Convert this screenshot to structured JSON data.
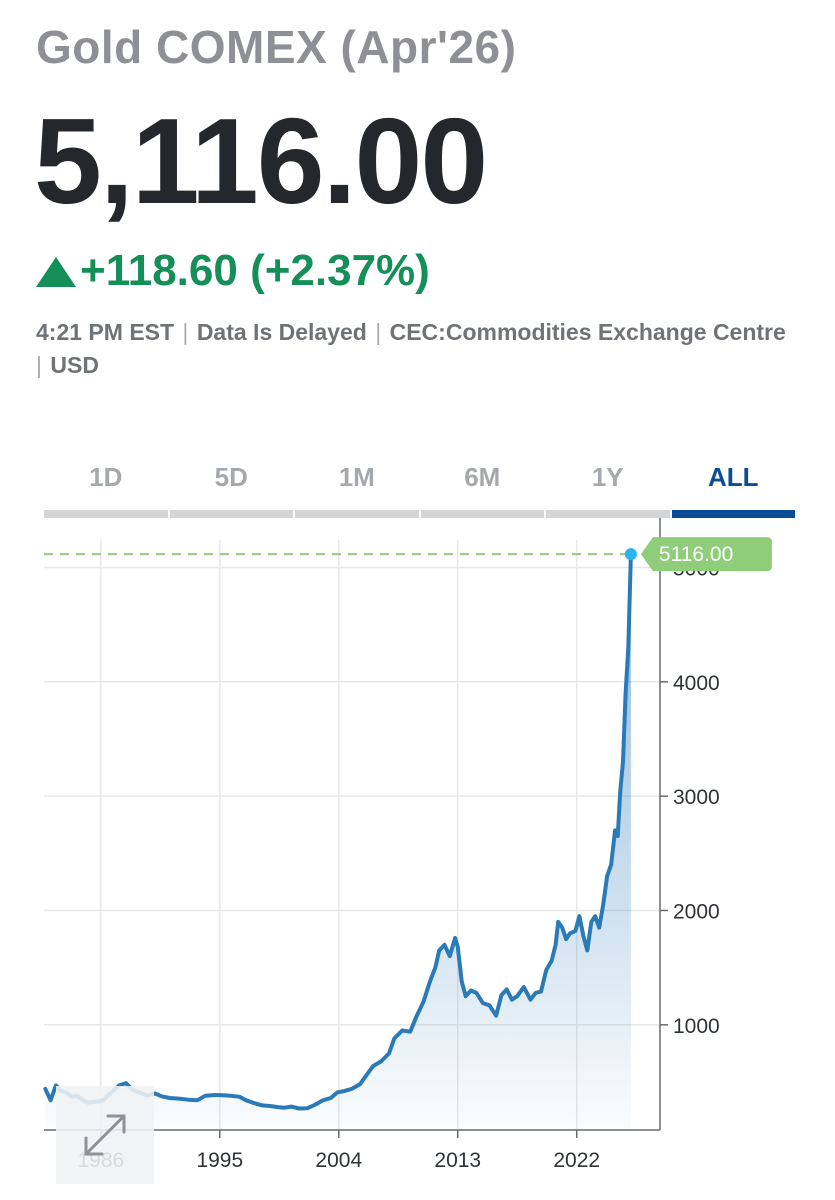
{
  "header": {
    "title": "Gold COMEX (Apr'26)",
    "price": "5,116.00",
    "change": "+118.60 (+2.37%)",
    "meta": [
      "4:21 PM EST",
      "Data Is Delayed",
      "CEC:Commodities Exchange Centre",
      "USD"
    ]
  },
  "colors": {
    "up": "#148f57",
    "line": "#2a7ab8",
    "accent": "#0b4c97",
    "last_price_tag": "#8fcd7a",
    "last_point": "#2bb5f0"
  },
  "tabs": [
    "1D",
    "5D",
    "1M",
    "6M",
    "1Y",
    "ALL"
  ],
  "active_tab": "ALL",
  "chart_data": {
    "type": "area",
    "title": "",
    "xlabel": "",
    "ylabel": "",
    "x_ticks": [
      "1986",
      "1995",
      "2004",
      "2013",
      "2022"
    ],
    "x_tick_values": [
      1986,
      1995,
      2004,
      2013,
      2022
    ],
    "y_ticks": [
      "1000",
      "2000",
      "3000",
      "4000",
      "5000"
    ],
    "y_tick_values": [
      1000,
      2000,
      3000,
      4000,
      5000
    ],
    "xlim": [
      1981.7,
      2028.3
    ],
    "ylim": [
      80,
      5240
    ],
    "last_value_label": "5116.00",
    "last_value": 5116,
    "series": [
      {
        "name": "Gold COMEX (Apr'26)",
        "x": [
          1981.8,
          1982.2,
          1982.6,
          1983.0,
          1983.4,
          1983.8,
          1984.2,
          1984.6,
          1985.0,
          1985.4,
          1985.8,
          1986.2,
          1986.6,
          1987.0,
          1987.4,
          1987.9,
          1988.4,
          1988.9,
          1989.5,
          1990.1,
          1990.6,
          1991.2,
          1991.9,
          1992.6,
          1993.3,
          1993.9,
          1994.5,
          1995.1,
          1995.8,
          1996.5,
          1997.0,
          1997.6,
          1998.2,
          1998.8,
          1999.4,
          1999.9,
          2000.4,
          2001.0,
          2001.6,
          2002.2,
          2002.8,
          2003.4,
          2003.9,
          2004.4,
          2005.0,
          2005.6,
          2006.1,
          2006.6,
          2007.2,
          2007.8,
          2008.2,
          2008.8,
          2009.4,
          2009.9,
          2010.4,
          2010.9,
          2011.3,
          2011.6,
          2012.0,
          2012.4,
          2012.8,
          2013.0,
          2013.3,
          2013.6,
          2014.0,
          2014.4,
          2014.9,
          2015.4,
          2015.9,
          2016.3,
          2016.7,
          2017.1,
          2017.5,
          2018.0,
          2018.5,
          2018.9,
          2019.3,
          2019.7,
          2020.1,
          2020.4,
          2020.6,
          2020.9,
          2021.2,
          2021.5,
          2021.9,
          2022.2,
          2022.5,
          2022.8,
          2023.1,
          2023.4,
          2023.7,
          2024.0,
          2024.3,
          2024.6,
          2024.9,
          2025.1,
          2025.3,
          2025.5,
          2025.7,
          2025.9,
          2026.1
        ],
        "values": [
          440,
          340,
          470,
          420,
          410,
          370,
          380,
          345,
          320,
          325,
          330,
          340,
          390,
          430,
          470,
          490,
          430,
          410,
          380,
          400,
          375,
          360,
          355,
          345,
          340,
          380,
          385,
          385,
          380,
          370,
          340,
          315,
          295,
          290,
          280,
          275,
          285,
          268,
          270,
          300,
          340,
          360,
          410,
          420,
          440,
          480,
          560,
          640,
          680,
          750,
          880,
          950,
          940,
          1080,
          1200,
          1380,
          1500,
          1650,
          1700,
          1600,
          1760,
          1680,
          1380,
          1250,
          1300,
          1280,
          1190,
          1170,
          1080,
          1260,
          1310,
          1220,
          1250,
          1330,
          1220,
          1280,
          1290,
          1480,
          1560,
          1700,
          1900,
          1850,
          1750,
          1800,
          1820,
          1950,
          1780,
          1650,
          1900,
          1950,
          1850,
          2050,
          2300,
          2400,
          2700,
          2650,
          3050,
          3300,
          3900,
          4300,
          5116
        ]
      }
    ]
  }
}
